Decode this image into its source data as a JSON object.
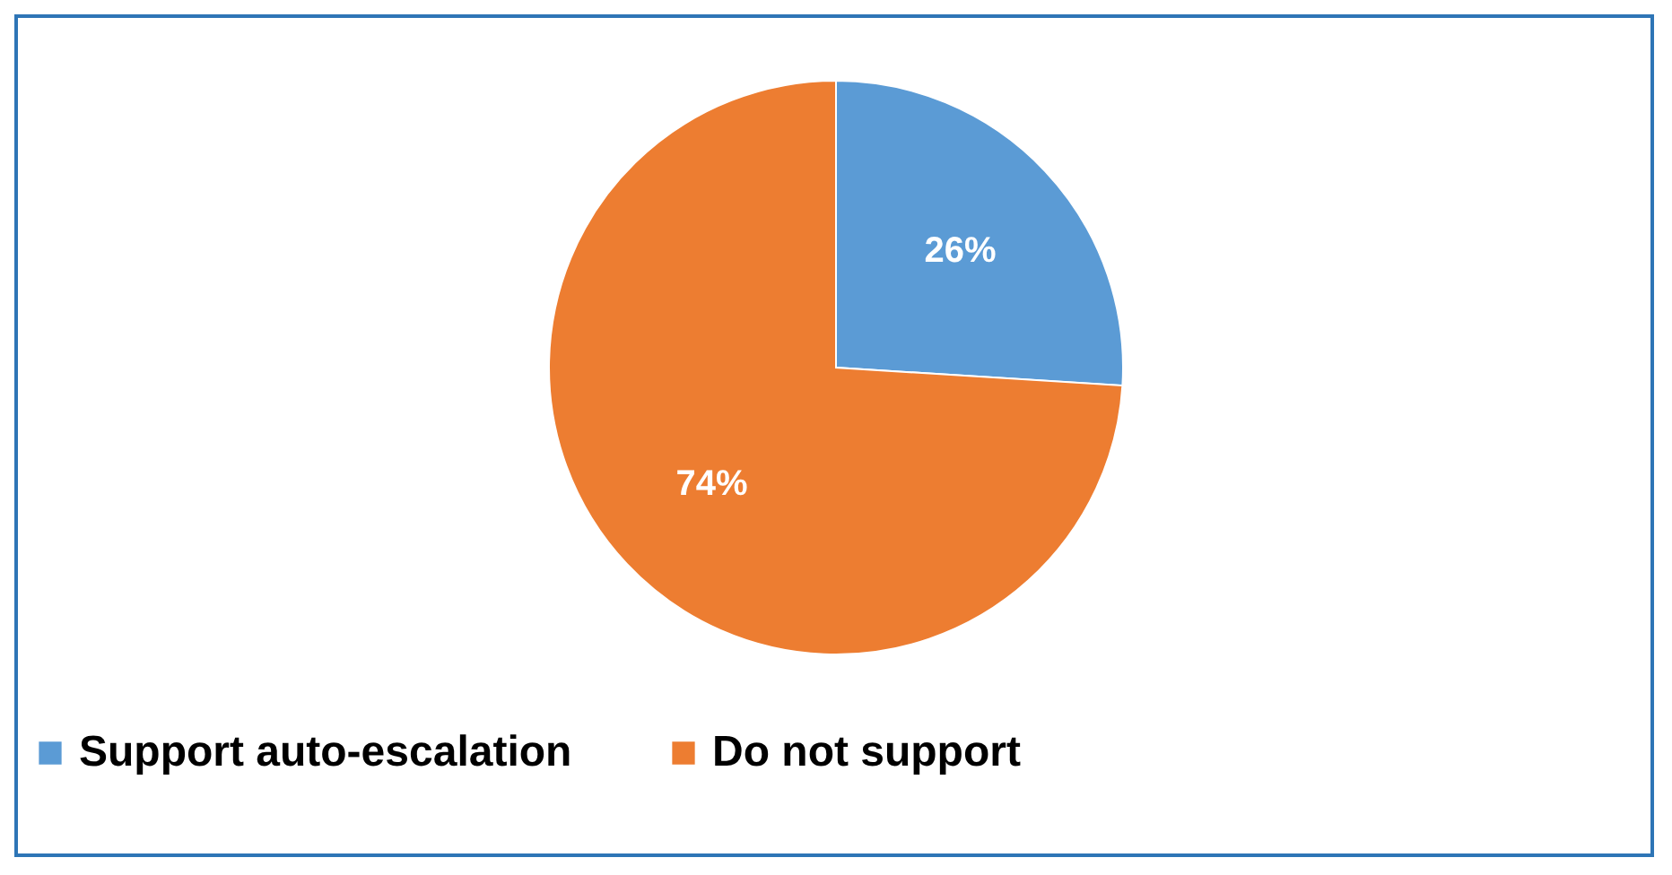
{
  "chart_data": {
    "type": "pie",
    "categories": [
      "Support auto-escalation",
      "Do not support"
    ],
    "values": [
      26,
      74
    ],
    "colors": [
      "#5b9bd5",
      "#ed7d31"
    ],
    "value_labels": [
      "26%",
      "74%"
    ],
    "legend": "bottom"
  }
}
